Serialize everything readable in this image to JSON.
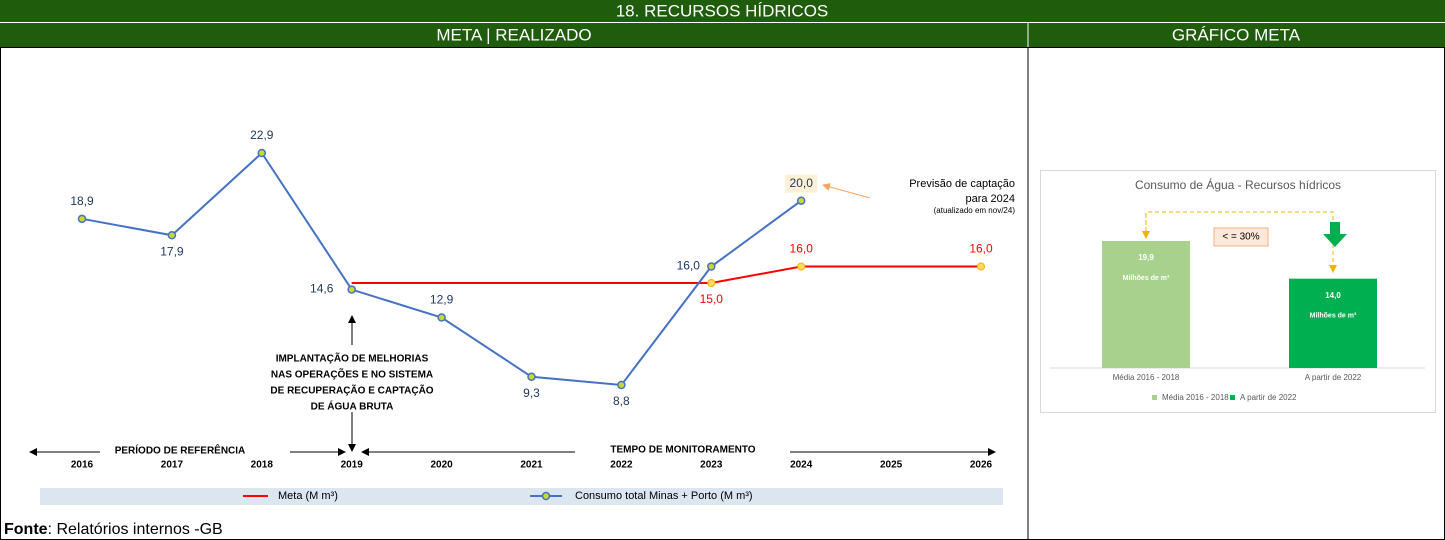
{
  "header": {
    "title": "18.  RECURSOS HÍDRICOS",
    "left_panel": "META | REALIZADO",
    "right_panel": "GRÁFICO META"
  },
  "footer": {
    "source_label": "Fonte",
    "source_text": ": Relatórios internos -GB"
  },
  "chart_data": [
    {
      "type": "line",
      "categories": [
        "2016",
        "2017",
        "2018",
        "2019",
        "2020",
        "2021",
        "2022",
        "2023",
        "2024",
        "2025",
        "2026"
      ],
      "series": [
        {
          "name": "Meta (M m³)",
          "color": "#ff0000",
          "values": [
            null,
            null,
            null,
            15,
            15,
            15,
            15,
            15,
            16,
            16,
            16
          ],
          "value_labels": [
            null,
            null,
            null,
            null,
            null,
            null,
            null,
            "15,0",
            "16,0",
            null,
            "16,0"
          ]
        },
        {
          "name": "Consumo total Minas + Porto (M m³)",
          "color": "#4472c4",
          "values": [
            18.9,
            17.9,
            22.9,
            14.6,
            12.9,
            9.3,
            8.8,
            16.0,
            20.0,
            null,
            null
          ],
          "value_labels": [
            "18,9",
            "17,9",
            "22,9",
            "14,6",
            "12,9",
            "9,3",
            "8,8",
            "16,0",
            "20,0",
            null,
            null
          ]
        }
      ],
      "annotations": {
        "improvement": [
          "IMPLANTAÇÃO DE MELHORIAS",
          "NAS OPERAÇÕES E NO SISTEMA",
          "DE RECUPERAÇÃO E CAPTAÇÃO",
          "DE ÁGUA BRUTA"
        ],
        "forecast": [
          "Previsão de captação",
          "para 2024",
          "(atualizado em nov/24)"
        ],
        "reference_period": "PERÍODO DE REFERÊNCIA",
        "monitoring_period": "TEMPO DE MONITORAMENTO"
      }
    },
    {
      "type": "bar",
      "title": "Consumo de Água - Recursos hídricos",
      "categories": [
        "Média 2016 - 2018",
        "A partir de 2022"
      ],
      "values": [
        19.9,
        14.0
      ],
      "value_labels": [
        "19,9",
        "14,0"
      ],
      "colors": [
        "#a9d18e",
        "#00b050"
      ],
      "unit_label": "Milhões de m³",
      "annotation": "< = 30%"
    }
  ]
}
